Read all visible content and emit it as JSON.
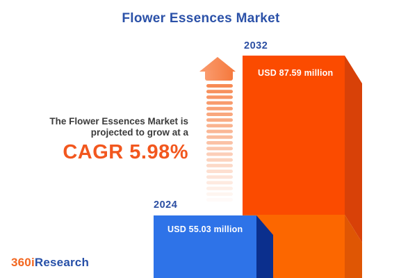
{
  "title": "Flower Essences Market",
  "growth_note": {
    "line1": "The Flower Essences Market is",
    "line2": "projected to grow at a",
    "cagr": "CAGR 5.98%"
  },
  "bars": [
    {
      "year": "2024",
      "value_label": "USD 55.03 million"
    },
    {
      "year": "2032",
      "value_label": "USD 87.59 million"
    }
  ],
  "logo": {
    "prefix": "360i",
    "suffix": "Research"
  },
  "colors": {
    "title_blue": "#2B51A8",
    "year_label_blue": "#2B4EA2",
    "bar_2032_front_upper": "#FB4B00",
    "bar_2032_front_lower": "#FC6700",
    "bar_2032_side_upper": "#D84108",
    "bar_2032_side_lower": "#DF5604",
    "bar_2024_front": "#2E73E8",
    "bar_2024_side": "#0B2F8D",
    "arrow_orange": "#F78B55",
    "cagr_orange": "#F2571E",
    "note_text_dark": "#3B3B3B",
    "logo_orange": "#F2661F",
    "logo_blue": "#2750A8",
    "background": "#FFFFFF"
  },
  "chart_data": {
    "type": "bar",
    "title": "Flower Essences Market",
    "categories": [
      "2024",
      "2032"
    ],
    "values": [
      55.03,
      87.59
    ],
    "unit": "USD million",
    "value_labels": [
      "USD 55.03 million",
      "USD 87.59 million"
    ],
    "cagr_percent": 5.98,
    "legend_position": "none",
    "grid": false,
    "orientation": "vertical",
    "notes": "3D infographic-style bars cropped at bottom edge; growth arrow between annotation and bars"
  }
}
